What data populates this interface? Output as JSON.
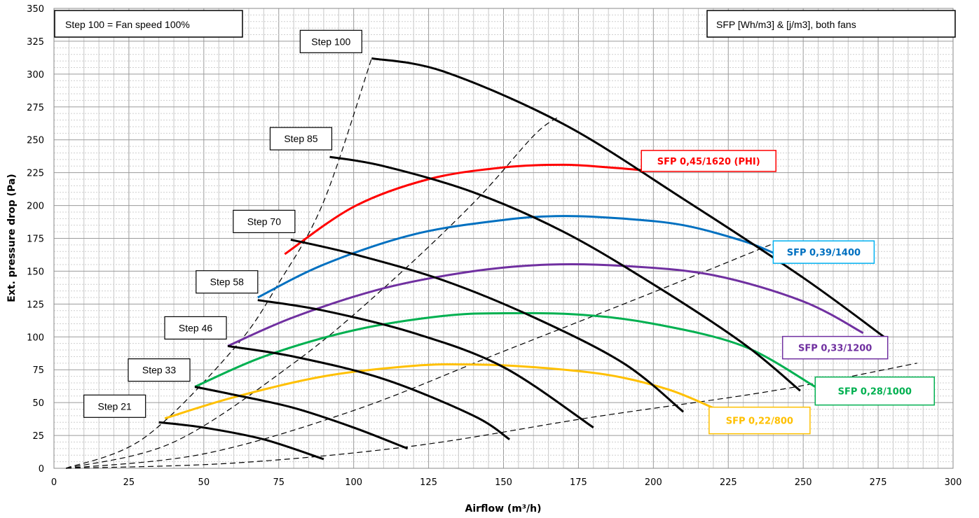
{
  "chart_data": {
    "type": "line",
    "xlabel": "Airflow (m³/h)",
    "ylabel": "Ext. pressure drop (Pa)",
    "xlim": [
      0,
      300
    ],
    "ylim": [
      0,
      350
    ],
    "x_ticks": [
      0,
      25,
      50,
      75,
      100,
      125,
      150,
      175,
      200,
      225,
      250,
      275,
      300
    ],
    "y_ticks": [
      0,
      25,
      50,
      75,
      100,
      125,
      150,
      175,
      200,
      225,
      250,
      275,
      300,
      325,
      350
    ],
    "grid": true,
    "info_left": "Step 100 = Fan speed 100%",
    "info_right": "SFP [Wh/m3] & [j/m3], both fans",
    "steps": [
      {
        "name": "Step 100",
        "x": [
          106,
          130,
          170,
          210,
          250,
          277
        ],
        "y": [
          312,
          302,
          262,
          205,
          145,
          100
        ]
      },
      {
        "name": "Step 85",
        "x": [
          92,
          110,
          140,
          170,
          200,
          230,
          249
        ],
        "y": [
          237,
          230,
          210,
          180,
          140,
          95,
          59
        ]
      },
      {
        "name": "Step 70",
        "x": [
          79,
          100,
          130,
          160,
          190,
          210
        ],
        "y": [
          174,
          163,
          143,
          115,
          80,
          43
        ]
      },
      {
        "name": "Step 58",
        "x": [
          68,
          90,
          120,
          150,
          180
        ],
        "y": [
          128,
          120,
          103,
          77,
          31
        ]
      },
      {
        "name": "Step 46",
        "x": [
          58,
          80,
          110,
          140,
          152
        ],
        "y": [
          93,
          85,
          68,
          40,
          22
        ]
      },
      {
        "name": "Step 33",
        "x": [
          47,
          60,
          80,
          100,
          118
        ],
        "y": [
          62,
          56,
          46,
          31,
          15
        ]
      },
      {
        "name": "Step 21",
        "x": [
          35,
          50,
          70,
          90
        ],
        "y": [
          35,
          31,
          22,
          7
        ]
      }
    ],
    "sfp_curves": [
      {
        "name": "SFP 0,45/1620 (PHI)",
        "color": "#ff0000",
        "x": [
          77,
          100,
          125,
          150,
          170,
          185,
          196
        ],
        "y": [
          163,
          199,
          220,
          229,
          231,
          229,
          227
        ]
      },
      {
        "name": "SFP 0,39/1400",
        "color": "#0070c0",
        "x": [
          68,
          90,
          120,
          150,
          170,
          190,
          210,
          230,
          240
        ],
        "y": [
          130,
          155,
          178,
          189,
          192,
          190,
          185,
          173,
          164
        ]
      },
      {
        "name": "SFP 0,33/1200",
        "color": "#7030a0",
        "x": [
          58,
          80,
          110,
          140,
          165,
          190,
          220,
          250,
          270
        ],
        "y": [
          93,
          115,
          137,
          150,
          155,
          154,
          147,
          127,
          103
        ]
      },
      {
        "name": "SFP 0,28/1000",
        "color": "#00b050",
        "x": [
          47,
          70,
          100,
          130,
          150,
          175,
          200,
          230,
          254
        ],
        "y": [
          62,
          85,
          105,
          116,
          118,
          117,
          110,
          93,
          62
        ]
      },
      {
        "name": "SFP 0,22/800",
        "color": "#ffc000",
        "x": [
          37,
          60,
          90,
          120,
          140,
          160,
          185,
          205,
          220
        ],
        "y": [
          38,
          54,
          70,
          78,
          79,
          77,
          71,
          60,
          46
        ]
      }
    ],
    "system_curves": [
      {
        "x": [
          4,
          30,
          60,
          75,
          90,
          106
        ],
        "y": [
          0,
          23,
          91,
          141,
          203,
          312
        ]
      },
      {
        "x": [
          4,
          40,
          80,
          110,
          140,
          160,
          168
        ],
        "y": [
          0,
          20,
          80,
          137,
          202,
          253,
          267
        ]
      },
      {
        "x": [
          4,
          50,
          100,
          150,
          200,
          240
        ],
        "y": [
          0,
          11,
          44,
          89,
          134,
          171
        ]
      },
      {
        "x": [
          4,
          60,
          120,
          180,
          240,
          288
        ],
        "y": [
          0,
          4,
          17,
          39,
          59,
          80
        ]
      }
    ]
  }
}
